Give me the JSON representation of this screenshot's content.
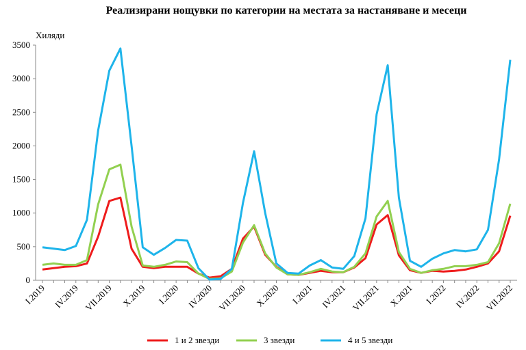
{
  "chart_data": {
    "type": "line",
    "title": "Реализирани нощувки по категории на местата за настаняване и месеци",
    "y_label": "Хиляди",
    "categories": [
      "I.2019",
      null,
      null,
      "IV.2019",
      null,
      null,
      "VII.2019",
      null,
      null,
      "X.2019",
      null,
      null,
      "I.2020",
      null,
      null,
      "IV.2020",
      null,
      null,
      "VII.2020",
      null,
      null,
      "X.2020",
      null,
      null,
      "I.2021",
      null,
      null,
      "IV.2021",
      null,
      null,
      "VII.2021",
      null,
      null,
      "X.2021",
      null,
      null,
      "I.2022",
      null,
      null,
      "IV.2022",
      null,
      null,
      "VII.2022"
    ],
    "series": [
      {
        "name": "1 и 2 звезди",
        "color": "#ee1c1c",
        "values": [
          160,
          180,
          200,
          210,
          250,
          650,
          1180,
          1230,
          470,
          200,
          180,
          200,
          200,
          200,
          100,
          40,
          60,
          170,
          620,
          800,
          380,
          200,
          90,
          80,
          110,
          140,
          120,
          120,
          190,
          330,
          830,
          970,
          370,
          150,
          110,
          140,
          130,
          140,
          160,
          200,
          250,
          430,
          960
        ]
      },
      {
        "name": "3 звезди",
        "color": "#92d050",
        "values": [
          230,
          250,
          230,
          230,
          300,
          1130,
          1650,
          1720,
          800,
          220,
          200,
          230,
          280,
          270,
          100,
          20,
          30,
          130,
          560,
          820,
          400,
          190,
          90,
          80,
          120,
          170,
          130,
          120,
          200,
          400,
          950,
          1180,
          420,
          170,
          110,
          150,
          170,
          210,
          210,
          230,
          270,
          550,
          1140
        ]
      },
      {
        "name": "4 и 5 звезди",
        "color": "#1eb4ea",
        "values": [
          490,
          470,
          450,
          510,
          900,
          2230,
          3120,
          3450,
          2000,
          490,
          380,
          480,
          600,
          590,
          180,
          10,
          20,
          170,
          1150,
          1920,
          1000,
          250,
          110,
          100,
          220,
          300,
          190,
          170,
          360,
          920,
          2470,
          3200,
          1230,
          290,
          200,
          320,
          400,
          450,
          430,
          460,
          750,
          1800,
          3280
        ]
      }
    ],
    "ylim": [
      0,
      3500
    ],
    "yticks": [
      0,
      500,
      1000,
      1500,
      2000,
      2500,
      3000,
      3500
    ],
    "legend": "bottom"
  }
}
